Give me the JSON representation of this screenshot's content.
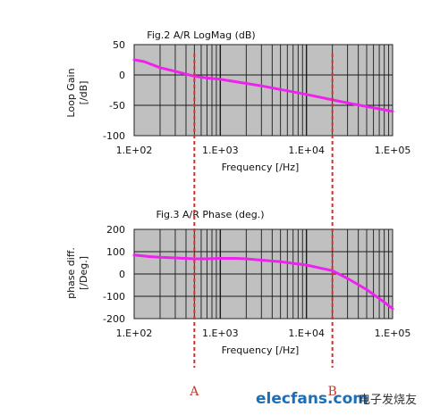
{
  "chart_data": [
    {
      "type": "line",
      "title": "Fig.2  A/R LogMag (dB)",
      "xlabel": "Frequency [/Hz]",
      "ylabel_lines": [
        "Loop Gain",
        "[/dB]"
      ],
      "xscale": "log",
      "xlim": [
        100,
        100000
      ],
      "ylim": [
        -100,
        50
      ],
      "yticks": [
        50,
        0,
        -50,
        -100
      ],
      "xtick_labels": [
        "1.E+02",
        "1.E+03",
        "1.E+04",
        "1.E+05"
      ],
      "grid": true,
      "series": [
        {
          "color": "#ee22ee",
          "x": [
            100,
            130,
            200,
            300,
            500,
            700,
            1000,
            2000,
            3000,
            5000,
            10000,
            20000,
            30000,
            50000,
            100000
          ],
          "y": [
            25,
            22,
            12,
            6,
            -2,
            -5,
            -7,
            -14,
            -18,
            -24,
            -32,
            -41,
            -46,
            -52,
            -60
          ]
        }
      ]
    },
    {
      "type": "line",
      "title": "Fig.3  A/R Phase (deg.)",
      "xlabel": "Frequency [/Hz]",
      "ylabel_lines": [
        "phase diff.",
        "[/Deg.]"
      ],
      "xscale": "log",
      "xlim": [
        100,
        100000
      ],
      "ylim": [
        -200,
        200
      ],
      "yticks": [
        200,
        100,
        0,
        -100,
        -200
      ],
      "xtick_labels": [
        "1.E+02",
        "1.E+03",
        "1.E+04",
        "1.E+05"
      ],
      "grid": true,
      "series": [
        {
          "color": "#ee22ee",
          "x": [
            100,
            150,
            200,
            300,
            500,
            700,
            1000,
            1500,
            2000,
            3000,
            5000,
            10000,
            20000,
            30000,
            50000,
            70000,
            100000
          ],
          "y": [
            85,
            78,
            75,
            72,
            68,
            68,
            70,
            70,
            68,
            62,
            55,
            40,
            15,
            -20,
            -70,
            -110,
            -155
          ]
        }
      ]
    }
  ],
  "markers": [
    {
      "label": "A",
      "x": 500
    },
    {
      "label": "B",
      "x": 20000
    }
  ],
  "marker_color": "#d62e2e",
  "plot_bg": "#c0c0c0",
  "watermark": {
    "main": "elecfans.com",
    "cn": "电子发烧友"
  }
}
